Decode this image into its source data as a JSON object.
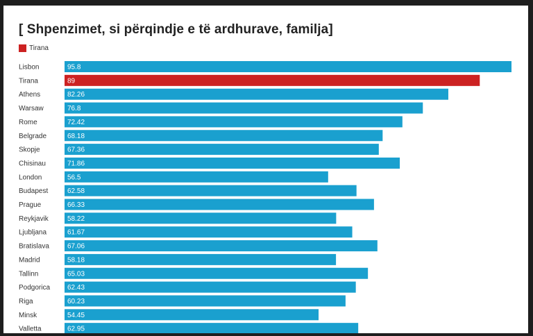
{
  "chart_data": {
    "type": "bar",
    "orientation": "horizontal",
    "title": "[ Shpenzimet, si përqindje e të ardhurave, familja]",
    "legend": {
      "label": "Tirana",
      "color": "#cc2222",
      "placement": "top-left"
    },
    "categories": [
      "Lisbon",
      "Tirana",
      "Athens",
      "Warsaw",
      "Rome",
      "Belgrade",
      "Skopje",
      "Chisinau",
      "London",
      "Budapest",
      "Prague",
      "Reykjavik",
      "Ljubljana",
      "Bratislava",
      "Madrid",
      "Tallinn",
      "Podgorica",
      "Riga",
      "Minsk",
      "Valletta"
    ],
    "values": [
      95.8,
      89,
      82.26,
      76.8,
      72.42,
      68.18,
      67.36,
      71.86,
      56.5,
      62.58,
      66.33,
      58.22,
      61.67,
      67.06,
      58.18,
      65.03,
      62.43,
      60.23,
      54.45,
      62.95
    ],
    "value_labels": [
      "95.8",
      "89",
      "82.26",
      "76.8",
      "72.42",
      "68.18",
      "67.36",
      "71.86",
      "56.5",
      "62.58",
      "66.33",
      "58.22",
      "61.67",
      "67.06",
      "58.18",
      "65.03",
      "62.43",
      "60.23",
      "54.45",
      "62.95"
    ],
    "highlight": "Tirana",
    "colors": {
      "default": "#1aa0cf",
      "highlight": "#cc2222"
    },
    "xlim": [
      0,
      95.8
    ],
    "grid": false
  }
}
